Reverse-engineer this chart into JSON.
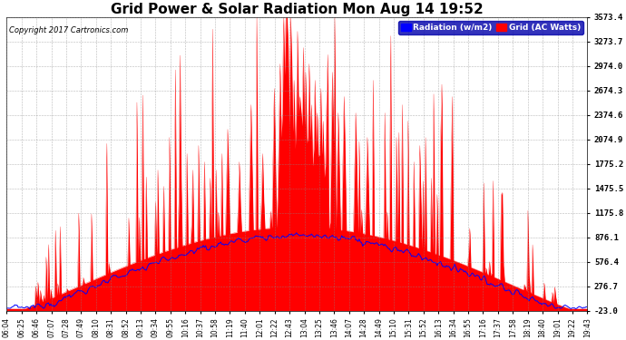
{
  "title": "Grid Power & Solar Radiation Mon Aug 14 19:52",
  "copyright": "Copyright 2017 Cartronics.com",
  "legend_radiation": "Radiation (w/m2)",
  "legend_grid": "Grid (AC Watts)",
  "yticks": [
    -23.0,
    276.7,
    576.4,
    876.1,
    1175.8,
    1475.5,
    1775.2,
    2074.9,
    2374.6,
    2674.3,
    2974.0,
    3273.7,
    3573.4
  ],
  "ymin": -23.0,
  "ymax": 3573.4,
  "background_color": "#ffffff",
  "plot_bg_color": "#ffffff",
  "grid_color": "#888888",
  "radiation_color": "#0000ff",
  "grid_power_color": "#ff0000",
  "title_fontsize": 11,
  "xtick_labels": [
    "06:04",
    "06:25",
    "06:46",
    "07:07",
    "07:28",
    "07:49",
    "08:10",
    "08:31",
    "08:52",
    "09:13",
    "09:34",
    "09:55",
    "10:16",
    "10:37",
    "10:58",
    "11:19",
    "11:40",
    "12:01",
    "12:22",
    "12:43",
    "13:04",
    "13:25",
    "13:46",
    "14:07",
    "14:28",
    "14:49",
    "15:10",
    "15:31",
    "15:52",
    "16:13",
    "16:34",
    "16:55",
    "17:16",
    "17:37",
    "17:58",
    "18:19",
    "18:40",
    "19:01",
    "19:22",
    "19:43"
  ]
}
